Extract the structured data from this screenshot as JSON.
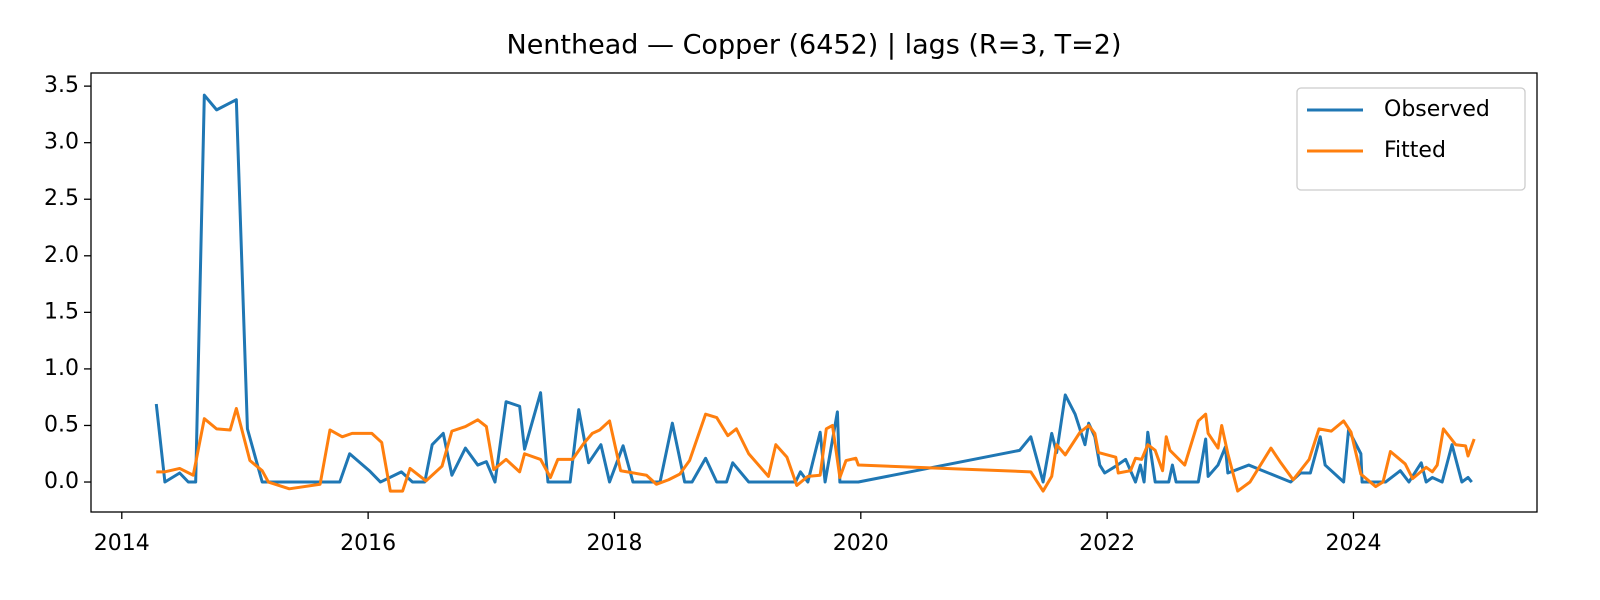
{
  "chart_data": {
    "type": "line",
    "title": "Nenthead — Copper (6452) | lags (R=3, T=2)",
    "xlim": [
      2013.75,
      2025.49
    ],
    "ylim": [
      -0.265,
      3.616
    ],
    "xticks": [
      2014,
      2016,
      2018,
      2020,
      2022,
      2024
    ],
    "yticks": [
      {
        "value": 0,
        "label": "0.0"
      },
      {
        "value": 0.5,
        "label": "0.5"
      },
      {
        "value": 1,
        "label": "1.0"
      },
      {
        "value": 1.5,
        "label": "1.5"
      },
      {
        "value": 2,
        "label": "2.0"
      },
      {
        "value": 2.5,
        "label": "2.5"
      },
      {
        "value": 3,
        "label": "3.0"
      },
      {
        "value": 3.5,
        "label": "3.5"
      }
    ],
    "grid": false,
    "legend": "upper right",
    "series": [
      {
        "name": "Observed",
        "color": "#1f77b4",
        "x": [
          2014.28,
          2014.35,
          2014.47,
          2014.54,
          2014.6,
          2014.67,
          2014.77,
          2014.93,
          2015.02,
          2015.14,
          2015.77,
          2015.85,
          2016.01,
          2016.1,
          2016.27,
          2016.36,
          2016.46,
          2016.52,
          2016.61,
          2016.68,
          2016.79,
          2016.89,
          2016.96,
          2017.03,
          2017.12,
          2017.23,
          2017.27,
          2017.4,
          2017.46,
          2017.64,
          2017.71,
          2017.79,
          2017.89,
          2017.96,
          2018.07,
          2018.15,
          2018.37,
          2018.47,
          2018.57,
          2018.63,
          2018.74,
          2018.83,
          2018.91,
          2018.96,
          2019.09,
          2019.47,
          2019.51,
          2019.57,
          2019.67,
          2019.71,
          2019.81,
          2019.83,
          2019.98,
          2021.29,
          2021.38,
          2021.48,
          2021.55,
          2021.59,
          2021.66,
          2021.74,
          2021.82,
          2021.85,
          2021.9,
          2021.94,
          2021.98,
          2022.07,
          2022.15,
          2022.23,
          2022.27,
          2022.3,
          2022.33,
          2022.39,
          2022.5,
          2022.53,
          2022.56,
          2022.74,
          2022.8,
          2022.82,
          2022.9,
          2022.96,
          2022.98,
          2023.15,
          2023.49,
          2023.57,
          2023.65,
          2023.73,
          2023.77,
          2023.92,
          2023.96,
          2024.06,
          2024.07,
          2024.26,
          2024.38,
          2024.45,
          2024.55,
          2024.59,
          2024.64,
          2024.72,
          2024.8,
          2024.88,
          2024.93,
          2024.96
        ],
        "values": [
          0.69,
          0,
          0.08,
          0,
          0,
          3.42,
          3.29,
          3.38,
          0.47,
          0,
          0,
          0.25,
          0.1,
          0,
          0.09,
          0,
          0,
          0.33,
          0.43,
          0.06,
          0.3,
          0.15,
          0.18,
          0,
          0.71,
          0.67,
          0.29,
          0.79,
          0,
          0,
          0.64,
          0.17,
          0.33,
          0,
          0.32,
          0,
          0,
          0.52,
          0,
          0,
          0.21,
          0,
          0,
          0.17,
          0,
          0,
          0.09,
          0,
          0.44,
          0,
          0.62,
          0,
          0,
          0.28,
          0.4,
          0,
          0.43,
          0.26,
          0.77,
          0.6,
          0.33,
          0.52,
          0.4,
          0.15,
          0.08,
          0.14,
          0.2,
          0,
          0.15,
          0,
          0.44,
          0,
          0,
          0.15,
          0,
          0,
          0.38,
          0.05,
          0.15,
          0.31,
          0.08,
          0.15,
          0,
          0.08,
          0.08,
          0.4,
          0.15,
          0,
          0.46,
          0.25,
          0,
          0,
          0.1,
          0,
          0.17,
          0,
          0.04,
          0,
          0.33,
          0,
          0.04,
          0
        ]
      },
      {
        "name": "Fitted",
        "color": "#ff7f0e",
        "x": [
          2014.28,
          2014.35,
          2014.47,
          2014.58,
          2014.67,
          2014.77,
          2014.88,
          2014.93,
          2015.04,
          2015.14,
          2015.19,
          2015.36,
          2015.61,
          2015.69,
          2015.79,
          2015.87,
          2016.03,
          2016.11,
          2016.18,
          2016.28,
          2016.34,
          2016.47,
          2016.6,
          2016.68,
          2016.79,
          2016.89,
          2016.96,
          2017.02,
          2017.12,
          2017.23,
          2017.27,
          2017.4,
          2017.48,
          2017.54,
          2017.66,
          2017.75,
          2017.82,
          2017.88,
          2017.96,
          2018.05,
          2018.26,
          2018.34,
          2018.44,
          2018.53,
          2018.61,
          2018.74,
          2018.83,
          2018.92,
          2018.99,
          2019.09,
          2019.25,
          2019.31,
          2019.4,
          2019.48,
          2019.57,
          2019.67,
          2019.72,
          2019.77,
          2019.83,
          2019.88,
          2019.96,
          2019.98,
          2021.38,
          2021.48,
          2021.55,
          2021.59,
          2021.66,
          2021.78,
          2021.85,
          2021.9,
          2021.93,
          2022.07,
          2022.09,
          2022.19,
          2022.23,
          2022.28,
          2022.33,
          2022.39,
          2022.45,
          2022.48,
          2022.51,
          2022.63,
          2022.74,
          2022.8,
          2022.82,
          2022.9,
          2022.93,
          2022.98,
          2023.06,
          2023.16,
          2023.33,
          2023.41,
          2023.51,
          2023.64,
          2023.72,
          2023.82,
          2023.92,
          2023.98,
          2024.06,
          2024.18,
          2024.24,
          2024.3,
          2024.42,
          2024.48,
          2024.59,
          2024.64,
          2024.68,
          2024.73,
          2024.83,
          2024.91,
          2024.93,
          2024.98
        ],
        "values": [
          0.09,
          0.09,
          0.12,
          0.06,
          0.56,
          0.47,
          0.46,
          0.65,
          0.19,
          0.1,
          0,
          -0.06,
          -0.02,
          0.46,
          0.4,
          0.43,
          0.43,
          0.35,
          -0.08,
          -0.08,
          0.12,
          0.01,
          0.14,
          0.45,
          0.49,
          0.55,
          0.49,
          0.11,
          0.2,
          0.09,
          0.25,
          0.2,
          0.04,
          0.2,
          0.2,
          0.34,
          0.43,
          0.46,
          0.54,
          0.1,
          0.06,
          -0.02,
          0.02,
          0.07,
          0.19,
          0.6,
          0.57,
          0.41,
          0.47,
          0.25,
          0.05,
          0.33,
          0.22,
          -0.03,
          0.05,
          0.06,
          0.47,
          0.5,
          0.04,
          0.19,
          0.21,
          0.15,
          0.09,
          -0.08,
          0.05,
          0.33,
          0.24,
          0.44,
          0.5,
          0.43,
          0.26,
          0.22,
          0.08,
          0.1,
          0.21,
          0.2,
          0.33,
          0.28,
          0.1,
          0.4,
          0.28,
          0.15,
          0.54,
          0.6,
          0.43,
          0.3,
          0.5,
          0.25,
          -0.08,
          0,
          0.3,
          0.17,
          0.02,
          0.2,
          0.47,
          0.45,
          0.54,
          0.44,
          0.07,
          -0.04,
          0,
          0.27,
          0.16,
          0.03,
          0.13,
          0.09,
          0.15,
          0.47,
          0.33,
          0.32,
          0.23,
          0.38
        ]
      }
    ]
  }
}
